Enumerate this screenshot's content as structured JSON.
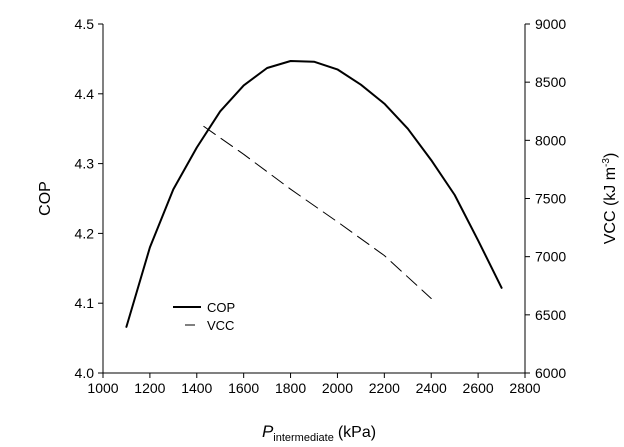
{
  "chart_data": {
    "type": "line",
    "title": "",
    "xlabel_main": "P",
    "xlabel_sub": "intermediate",
    "xlabel_unit": "(kPa)",
    "ylabel_left": "COP",
    "ylabel_right_prefix": "VCC (kJ m",
    "ylabel_right_exp": "-3",
    "ylabel_right_suffix": ")",
    "xlim": [
      1000,
      2800
    ],
    "ylim_left": [
      4.0,
      4.5
    ],
    "ylim_right": [
      6000,
      9000
    ],
    "xticks": [
      "1000",
      "1200",
      "1400",
      "1600",
      "1800",
      "2000",
      "2200",
      "2400",
      "2600",
      "2800"
    ],
    "yticks_left": [
      "4.0",
      "4.1",
      "4.2",
      "4.3",
      "4.4",
      "4.5"
    ],
    "yticks_right": [
      "6000",
      "6500",
      "7000",
      "7500",
      "8000",
      "8500",
      "9000"
    ],
    "legend_position": "lower-left",
    "series": [
      {
        "name": "COP",
        "axis": "left",
        "style": "solid",
        "color": "#000000",
        "x": [
          1100,
          1200,
          1300,
          1400,
          1500,
          1600,
          1700,
          1800,
          1900,
          2000,
          2100,
          2200,
          2300,
          2400,
          2500,
          2600,
          2700
        ],
        "y": [
          4.066,
          4.18,
          4.263,
          4.323,
          4.375,
          4.412,
          4.437,
          4.447,
          4.446,
          4.435,
          4.413,
          4.386,
          4.35,
          4.305,
          4.255,
          4.19,
          4.122
        ]
      },
      {
        "name": "VCC",
        "axis": "right",
        "style": "dashed",
        "color": "#000000",
        "x": [
          1430,
          1600,
          1800,
          2000,
          2200,
          2400
        ],
        "y": [
          8120,
          7880,
          7580,
          7300,
          7010,
          6640
        ]
      }
    ]
  }
}
